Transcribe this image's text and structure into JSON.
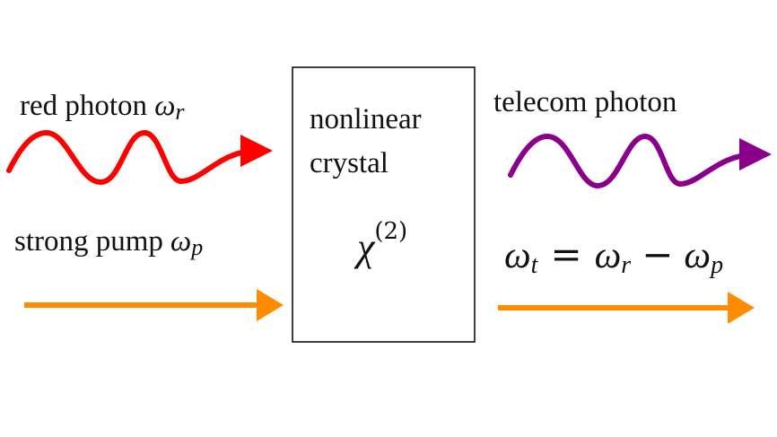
{
  "labels": {
    "red_photon": "red photon",
    "red_photon_symbol": "ω",
    "red_photon_sub": "r",
    "strong_pump": "strong pump",
    "strong_pump_symbol": "ω",
    "strong_pump_sub": "p",
    "telecom_photon": "telecom photon",
    "crystal_line1": "nonlinear",
    "crystal_line2": "crystal",
    "chi_symbol": "χ",
    "chi_superscript": "(2)",
    "equation": {
      "w1": "ω",
      "s1": "t",
      "eq": "=",
      "w2": "ω",
      "s2": "r",
      "minus": "−",
      "w3": "ω",
      "s3": "p"
    }
  },
  "colors": {
    "red_photon": "#ff0000",
    "telecom_photon": "#8b008b",
    "pump": "#ff8c00",
    "box": "#000000"
  }
}
